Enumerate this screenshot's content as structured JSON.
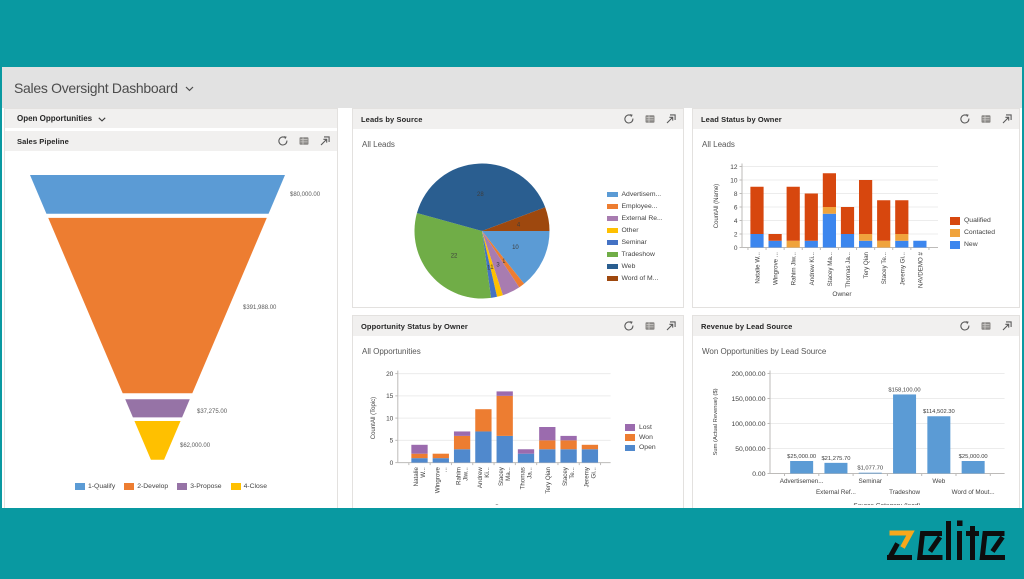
{
  "app": {
    "page_title": "Sales Oversight Dashboard",
    "brand": {
      "name": "zelite",
      "z_color": "#F8A81B",
      "letters_color": "#0D0D0D"
    },
    "theme": {
      "chrome_teal": "#0999A1",
      "titlebar_bg": "#E2E2E2",
      "tile_header_bg": "#F1F0EF",
      "tile_border": "#e3e1df"
    }
  },
  "left_section": {
    "title": "Open Opportunities"
  },
  "tile_actions": [
    {
      "name": "refresh-icon"
    },
    {
      "name": "view-records-icon"
    },
    {
      "name": "enlarge-icon"
    }
  ],
  "chart_data": {
    "sales_pipeline": {
      "type": "funnel",
      "title": "Sales Pipeline",
      "stages": [
        {
          "name": "1-Qualify",
          "value_label": "$80,000.00",
          "color": "#5B9BD5"
        },
        {
          "name": "2-Develop",
          "value_label": "$391,988.00",
          "color": "#ED7D31"
        },
        {
          "name": "3-Propose",
          "value_label": "$37,275.00",
          "color": "#9673A6"
        },
        {
          "name": "4-Close",
          "value_label": "$62,000.00",
          "color": "#FFC000"
        }
      ]
    },
    "leads_by_source": {
      "type": "pie",
      "title": "Leads by Source",
      "subtitle": "All Leads",
      "slices": [
        {
          "label": "Advertisem...",
          "value": 10,
          "color": "#5B9BD5"
        },
        {
          "label": "Employee...",
          "value": 1,
          "color": "#ED7D31"
        },
        {
          "label": "External Re...",
          "value": 3,
          "color": "#A87CB0"
        },
        {
          "label": "Other",
          "value": 1,
          "color": "#FFC000"
        },
        {
          "label": "Seminar",
          "value": 1,
          "color": "#4472C4"
        },
        {
          "label": "Tradeshow",
          "value": 22,
          "color": "#70AD47"
        },
        {
          "label": "Web",
          "value": 28,
          "color": "#2A5E90"
        },
        {
          "label": "Word of M...",
          "value": 4,
          "color": "#9E480E"
        }
      ]
    },
    "lead_status": {
      "type": "stacked-bar",
      "title": "Lead Status by Owner",
      "subtitle": "All Leads",
      "y_title": "CountAll (Name)",
      "x_title": "Owner",
      "y_max": 12,
      "y_step": 2,
      "categories": [
        [
          "Natalie W..."
        ],
        [
          "Wingrove ..."
        ],
        [
          "Rahim Jiw..."
        ],
        [
          "Andrew Ki..."
        ],
        [
          "Stacey Ma..."
        ],
        [
          "Thomas Ja..."
        ],
        [
          "Tery Qian"
        ],
        [
          "Stacey Te..."
        ],
        [
          "Jeremy Gi..."
        ],
        [
          "NAVDEMO #"
        ]
      ],
      "series": [
        {
          "name": "New",
          "color": "#3C86EE",
          "values": [
            2,
            1,
            0,
            1,
            5,
            2,
            1,
            0,
            1,
            1
          ]
        },
        {
          "name": "Contacted",
          "color": "#F0A33C",
          "values": [
            0,
            0,
            1,
            0,
            1,
            0,
            1,
            1,
            1,
            0
          ]
        },
        {
          "name": "Qualified",
          "color": "#D7470E",
          "values": [
            7,
            1,
            8,
            7,
            5,
            4,
            8,
            6,
            5,
            0
          ]
        }
      ],
      "legend": [
        "Qualified",
        "Contacted",
        "New"
      ]
    },
    "opportunity_status": {
      "type": "stacked-bar",
      "title": "Opportunity Status by Owner",
      "subtitle": "All Opportunities",
      "y_title": "CountAll (Topic)",
      "x_title": "Owner",
      "y_max": 20,
      "y_step": 5,
      "categories": [
        [
          "Natalie",
          "W..."
        ],
        [
          "Wingrove",
          "..."
        ],
        [
          "Rahim",
          "Jiw..."
        ],
        [
          "Andrew",
          "Ki..."
        ],
        [
          "Stacey",
          "Ma..."
        ],
        [
          "Thomas",
          "Ja..."
        ],
        [
          "Tery Qian"
        ],
        [
          "Stacey",
          "Te..."
        ],
        [
          "Jeremy",
          "Gi..."
        ]
      ],
      "series": [
        {
          "name": "Open",
          "color": "#5089CD",
          "values": [
            1,
            1,
            3,
            7,
            6,
            2,
            3,
            3,
            3
          ]
        },
        {
          "name": "Won",
          "color": "#ED7D31",
          "values": [
            1,
            1,
            3,
            5,
            9,
            0,
            2,
            2,
            1
          ]
        },
        {
          "name": "Lost",
          "color": "#9B6BAE",
          "values": [
            2,
            0,
            1,
            0,
            1,
            1,
            3,
            1,
            0
          ]
        }
      ],
      "legend": [
        "Lost",
        "Won",
        "Open"
      ]
    },
    "revenue_by_lead_source": {
      "type": "bar",
      "title": "Revenue by Lead Source",
      "subtitle": "Won Opportunities by Lead Source",
      "y_title": "Sum (Actual Revenue) ($)",
      "x_title": "Source Category (lead)",
      "y_ticks": [
        "0.00",
        "50,000.00",
        "100,000.00",
        "150,000.00",
        "200,000.00"
      ],
      "y_max": 200000,
      "bar_color": "#5B9BD5",
      "categories": [
        "Advertisemen...",
        "External Ref...",
        "Seminar",
        "Tradeshow",
        "Web",
        "Word of Mout..."
      ],
      "values": [
        25000,
        21275.7,
        1077.7,
        158100,
        114502.3,
        25000
      ],
      "value_labels": [
        "$25,000.00",
        "$21,275.70",
        "$1,077.70",
        "$158,100.00",
        "$114,502.30",
        "$25,000.00"
      ]
    }
  }
}
